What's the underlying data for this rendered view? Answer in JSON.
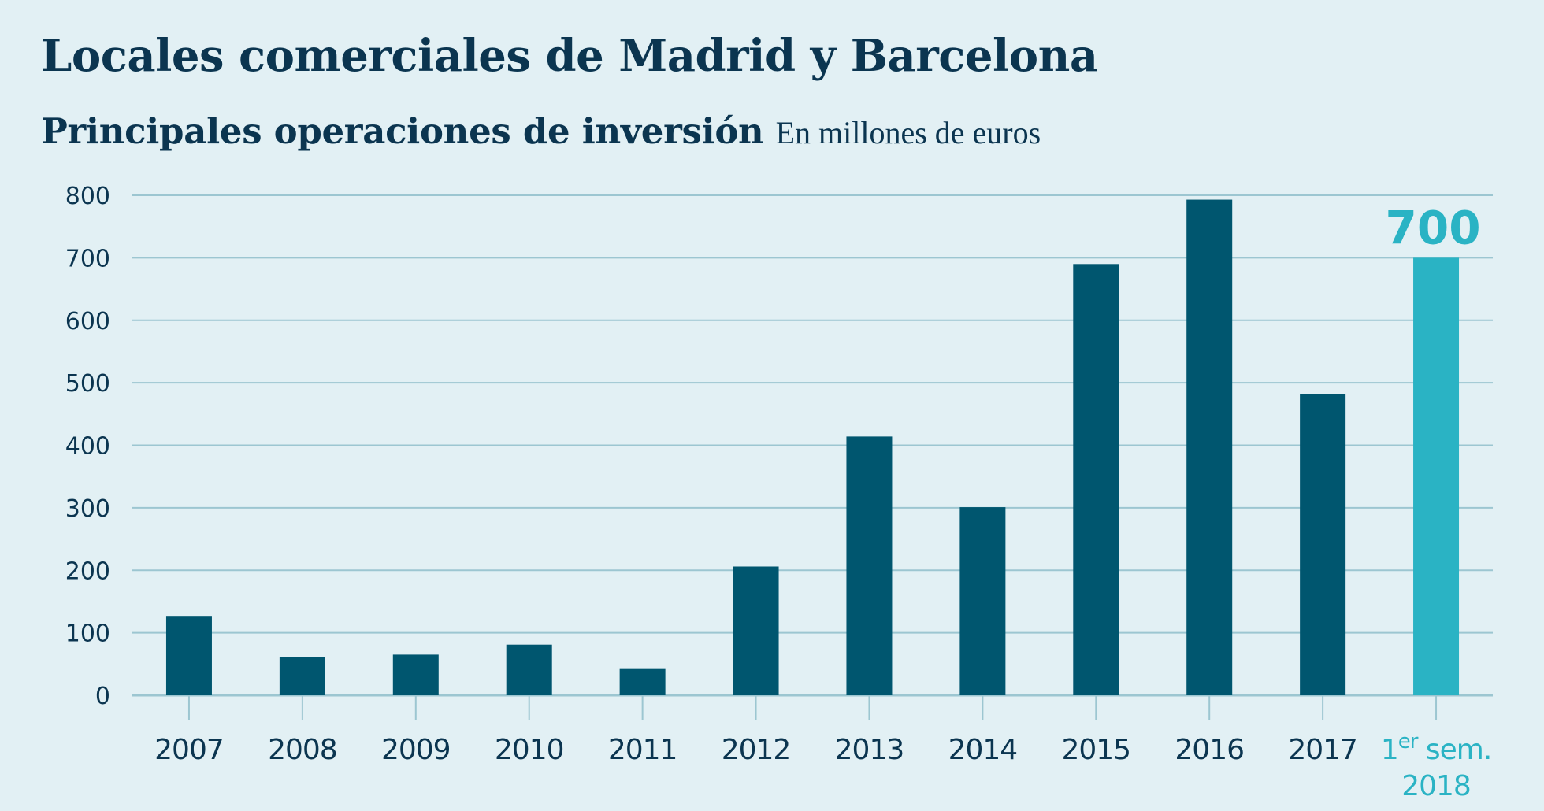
{
  "title": "Locales comerciales de Madrid y Barcelona",
  "subtitle": "Principales operaciones de inversión",
  "units": "En millones de euros",
  "colors": {
    "background": "#e2f0f4",
    "bar": "#00566f",
    "highlight": "#2ab3c4",
    "grid": "#9cc6d1",
    "text": "#0b3550"
  },
  "chart_data": {
    "type": "bar",
    "categories": [
      "2007",
      "2008",
      "2009",
      "2010",
      "2011",
      "2012",
      "2013",
      "2014",
      "2015",
      "2016",
      "2017",
      "1er sem. 2018"
    ],
    "category_display": [
      [
        "2007"
      ],
      [
        "2008"
      ],
      [
        "2009"
      ],
      [
        "2010"
      ],
      [
        "2011"
      ],
      [
        "2012"
      ],
      [
        "2013"
      ],
      [
        "2014"
      ],
      [
        "2015"
      ],
      [
        "2016"
      ],
      [
        "2017"
      ],
      [
        "1er sem.",
        "2018"
      ]
    ],
    "values": [
      127,
      61,
      65,
      81,
      42,
      206,
      414,
      301,
      690,
      793,
      482,
      700
    ],
    "highlight_index": 11,
    "data_labels": [
      {
        "index": 11,
        "text": "700"
      }
    ],
    "yticks": [
      0,
      100,
      200,
      300,
      400,
      500,
      600,
      700,
      800
    ],
    "ylim": [
      0,
      800
    ],
    "grid": true,
    "title": "Locales comerciales de Madrid y Barcelona",
    "subtitle": "Principales operaciones de inversión",
    "ylabel": "En millones de euros",
    "xlabel": ""
  }
}
